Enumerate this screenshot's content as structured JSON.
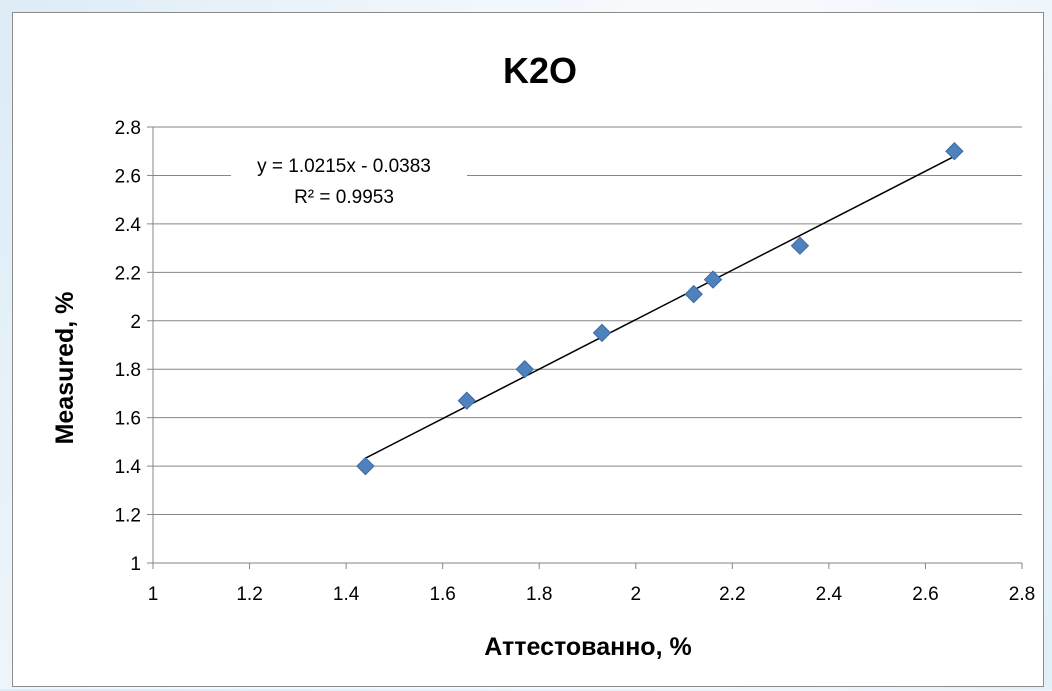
{
  "chart_data": {
    "type": "scatter",
    "title": "K2O",
    "xlabel": "Аттестованно, %",
    "ylabel": "Measured, %",
    "xlim": [
      1,
      2.8
    ],
    "ylim": [
      1,
      2.8
    ],
    "x_ticks": [
      "1",
      "1.2",
      "1.4",
      "1.6",
      "1.8",
      "2",
      "2.2",
      "2.4",
      "2.6",
      "2.8"
    ],
    "y_ticks": [
      "1",
      "1.2",
      "1.4",
      "1.6",
      "1.8",
      "2",
      "2.2",
      "2.4",
      "2.6",
      "2.8"
    ],
    "grid": "horizontal",
    "legend": "none",
    "marker": "diamond",
    "series": [
      {
        "points": [
          {
            "x": 1.44,
            "y": 1.4
          },
          {
            "x": 1.65,
            "y": 1.67
          },
          {
            "x": 1.77,
            "y": 1.8
          },
          {
            "x": 1.93,
            "y": 1.95
          },
          {
            "x": 2.12,
            "y": 2.11
          },
          {
            "x": 2.16,
            "y": 2.17
          },
          {
            "x": 2.34,
            "y": 2.31
          },
          {
            "x": 2.66,
            "y": 2.7
          }
        ]
      }
    ],
    "trendline": {
      "type": "linear",
      "slope": 1.0215,
      "intercept": -0.0383,
      "x_range": [
        1.44,
        2.66
      ],
      "equation": "y = 1.0215x - 0.0383",
      "r_squared": "R² = 0.9953"
    },
    "colors": {
      "marker": "#4f81bd",
      "marker_edge": "#3a6ba5",
      "trendline": "#000000",
      "grid": "#868686",
      "text": "#000000"
    }
  }
}
